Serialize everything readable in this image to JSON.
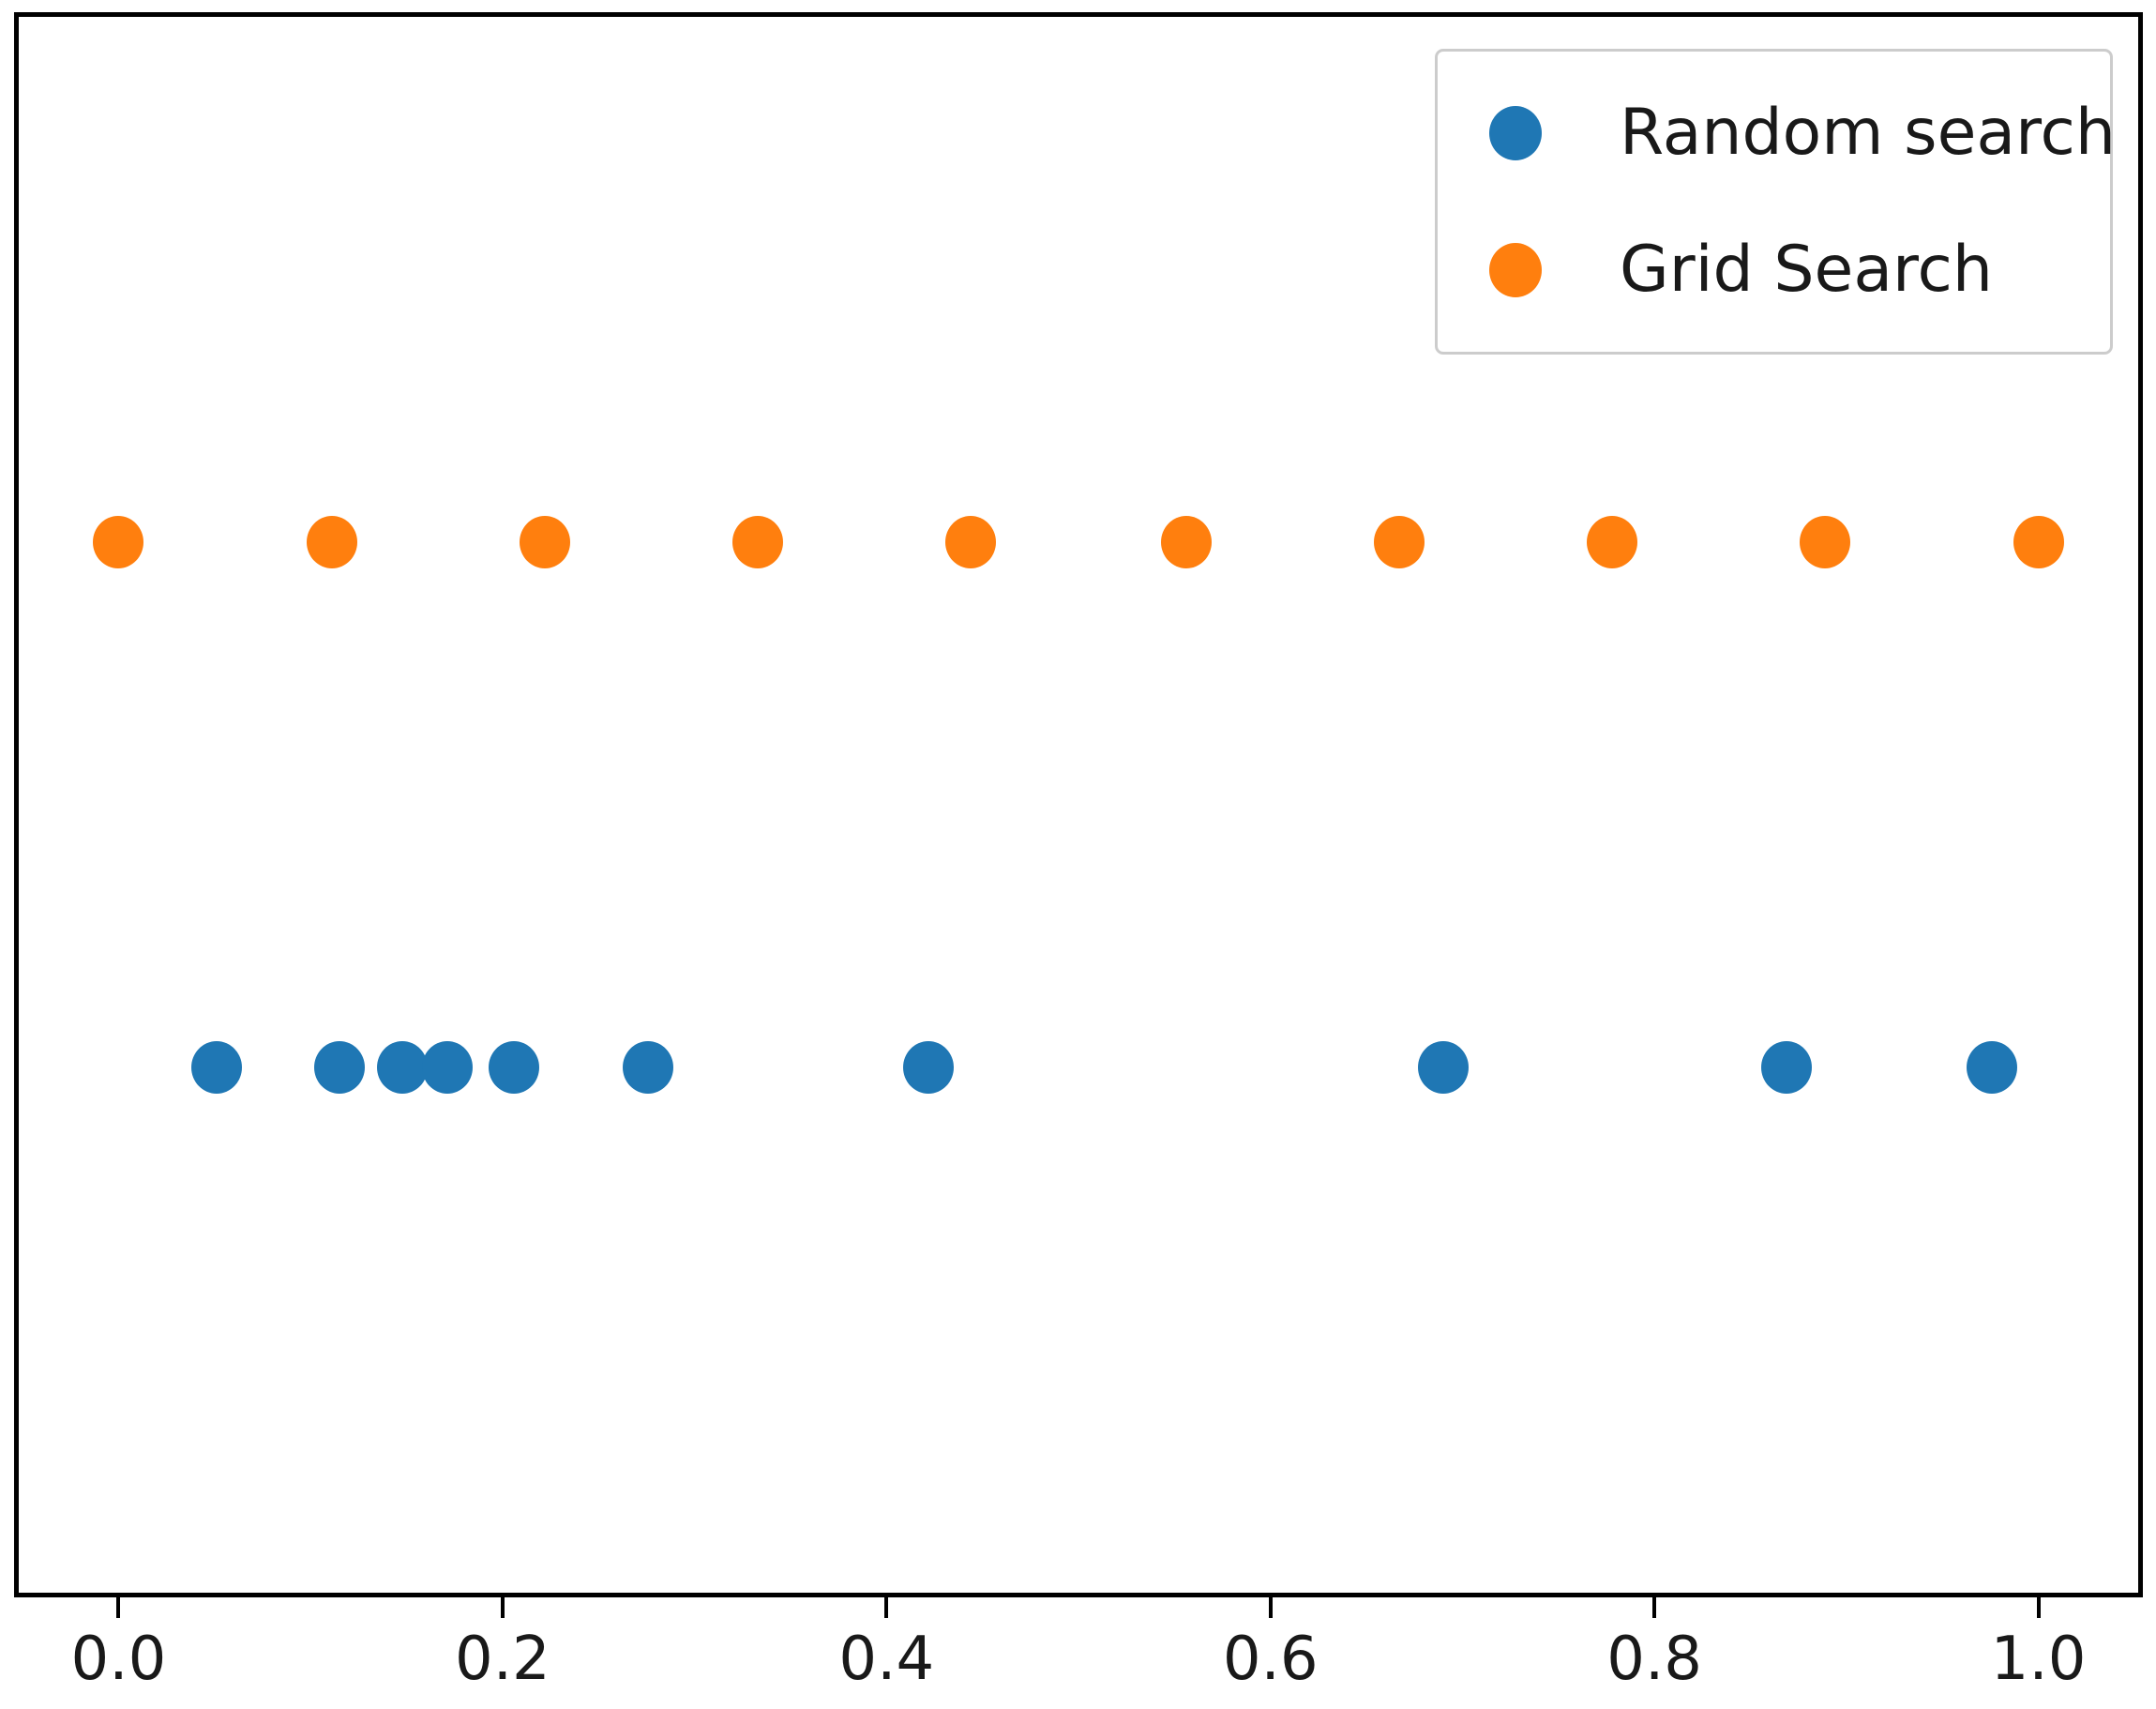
{
  "chart_data": {
    "type": "scatter",
    "title": "",
    "xlabel": "",
    "ylabel": "",
    "grid": false,
    "y_axis_ticks_visible": false,
    "legend_position": "upper right",
    "xlim": [
      -0.052,
      1.052
    ],
    "x_ticks": [
      0.0,
      0.2,
      0.4,
      0.6,
      0.8,
      1.0
    ],
    "x_tick_labels": [
      "0.0",
      "0.2",
      "0.4",
      "0.6",
      "0.8",
      "1.0"
    ],
    "series": [
      {
        "name": "Random search",
        "color": "#1f77b4",
        "y_frac_from_top": 0.6667,
        "x": [
          0.051,
          0.115,
          0.148,
          0.171,
          0.206,
          0.276,
          0.422,
          0.69,
          0.869,
          0.976
        ]
      },
      {
        "name": "Grid Search",
        "color": "#ff7f0e",
        "y_frac_from_top": 0.3333,
        "x": [
          0.0,
          0.111,
          0.222,
          0.333,
          0.444,
          0.556,
          0.667,
          0.778,
          0.889,
          1.0
        ]
      }
    ]
  },
  "legend": {
    "entries": [
      {
        "label": "Random search",
        "color": "#1f77b4"
      },
      {
        "label": "Grid Search",
        "color": "#ff7f0e"
      }
    ]
  }
}
